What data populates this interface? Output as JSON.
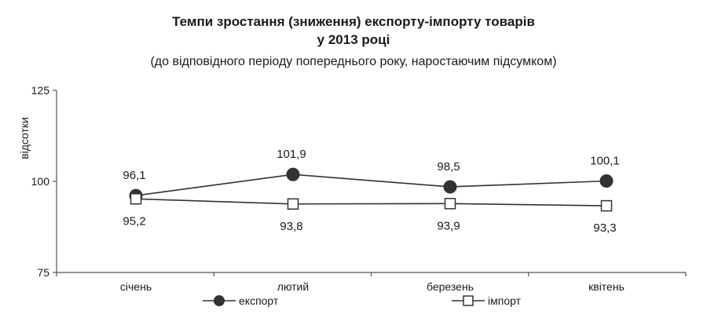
{
  "chart_data": {
    "type": "line",
    "title_line1": "Темпи зростання (зниження) експорту-імпорту товарів",
    "title_line2": "у 2013 році",
    "subtitle": "(до відповідного періоду попереднього року, наростаючим підсумком)",
    "ylabel": "відсотки",
    "xlabel": "",
    "ylim": [
      75,
      125
    ],
    "yticks": [
      "75",
      "100",
      "125"
    ],
    "categories": [
      "січень",
      "лютий",
      "березень",
      "квітень"
    ],
    "legend_position": "bottom",
    "grid": false,
    "series": [
      {
        "name": "експорт",
        "values": [
          96.1,
          101.9,
          98.5,
          100.1
        ],
        "labels": [
          "96,1",
          "101,9",
          "98,5",
          "100,1"
        ],
        "marker": "filled-circle",
        "label_position": "above",
        "color": "#333333"
      },
      {
        "name": "імпорт",
        "values": [
          95.2,
          93.8,
          93.9,
          93.3
        ],
        "labels": [
          "95,2",
          "93,8",
          "93,9",
          "93,3"
        ],
        "marker": "open-square",
        "label_position": "below",
        "color": "#333333"
      }
    ]
  }
}
